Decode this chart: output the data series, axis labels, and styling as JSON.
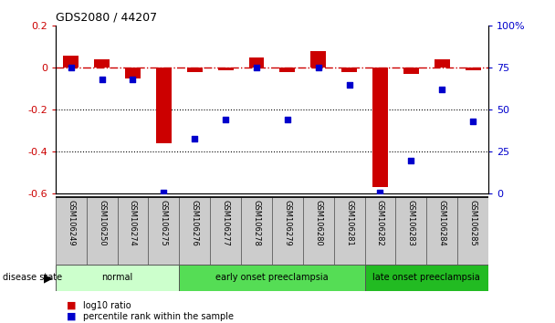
{
  "title": "GDS2080 / 44207",
  "samples": [
    "GSM106249",
    "GSM106250",
    "GSM106274",
    "GSM106275",
    "GSM106276",
    "GSM106277",
    "GSM106278",
    "GSM106279",
    "GSM106280",
    "GSM106281",
    "GSM106282",
    "GSM106283",
    "GSM106284",
    "GSM106285"
  ],
  "log10_ratio": [
    0.06,
    0.04,
    -0.05,
    -0.36,
    -0.02,
    -0.01,
    0.05,
    -0.02,
    0.08,
    -0.02,
    -0.57,
    -0.03,
    0.04,
    -0.01
  ],
  "percentile_rank": [
    75,
    68,
    68,
    1,
    33,
    44,
    75,
    44,
    75,
    65,
    1,
    20,
    62,
    43
  ],
  "groups": [
    {
      "label": "normal",
      "start": 0,
      "end": 3,
      "color": "#ccffcc"
    },
    {
      "label": "early onset preeclampsia",
      "start": 4,
      "end": 9,
      "color": "#55dd55"
    },
    {
      "label": "late onset preeclampsia",
      "start": 10,
      "end": 13,
      "color": "#22bb22"
    }
  ],
  "ylim_left": [
    -0.6,
    0.2
  ],
  "ylim_right": [
    0,
    100
  ],
  "yticks_left": [
    -0.6,
    -0.4,
    -0.2,
    0.0,
    0.2
  ],
  "ytick_labels_left": [
    "-0.6",
    "-0.4",
    "-0.2",
    "0",
    "0.2"
  ],
  "yticks_right": [
    0,
    25,
    50,
    75,
    100
  ],
  "ytick_labels_right": [
    "0",
    "25",
    "50",
    "75",
    "100%"
  ],
  "bar_color": "#cc0000",
  "dot_color": "#0000cc",
  "hline_color": "#cc0000",
  "dotline_color": "black",
  "bg_color": "white",
  "bar_width": 0.5,
  "disease_state_label": "disease state",
  "legend_items": [
    {
      "label": "log10 ratio",
      "color": "#cc0000"
    },
    {
      "label": "percentile rank within the sample",
      "color": "#0000cc"
    }
  ]
}
